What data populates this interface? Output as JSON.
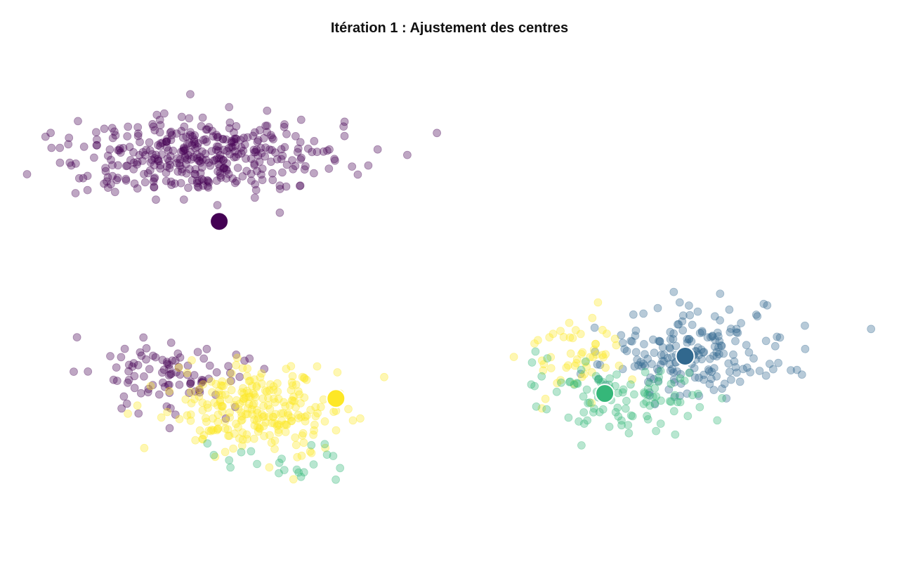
{
  "chart_data": {
    "type": "scatter",
    "title": "Itération 1 : Ajustement des centres",
    "xlabel": "",
    "ylabel": "",
    "axes_visible": false,
    "grid": false,
    "legend": "none",
    "xlim": [
      -2.5,
      13.5
    ],
    "ylim": [
      -3.5,
      9.0
    ],
    "palette": {
      "purple": "#440154",
      "blue": "#31688e",
      "green": "#35b779",
      "yellow": "#fde725"
    },
    "cluster_colors": [
      "purple",
      "blue",
      "green",
      "yellow"
    ],
    "centroids": [
      {
        "cluster": 0,
        "x": 1.2,
        "y": 4.8
      },
      {
        "cluster": 1,
        "x": 9.9,
        "y": 1.3
      },
      {
        "cluster": 2,
        "x": 8.4,
        "y": 0.33
      },
      {
        "cluster": 3,
        "x": 3.38,
        "y": 0.2
      }
    ],
    "point_groups": [
      {
        "cluster": 0,
        "count": 380,
        "center": [
          0.9,
          6.5
        ],
        "spread": [
          1.25,
          0.55
        ]
      },
      {
        "cluster": 0,
        "count": 95,
        "center": [
          0.3,
          0.8
        ],
        "spread": [
          0.75,
          0.55
        ]
      },
      {
        "cluster": 3,
        "count": 250,
        "center": [
          1.8,
          -0.1
        ],
        "spread": [
          0.85,
          0.55
        ]
      },
      {
        "cluster": 2,
        "count": 22,
        "center": [
          2.6,
          -1.4
        ],
        "spread": [
          0.7,
          0.3
        ]
      },
      {
        "cluster": 1,
        "count": 190,
        "center": [
          10.0,
          1.35
        ],
        "spread": [
          0.9,
          0.55
        ]
      },
      {
        "cluster": 3,
        "count": 55,
        "center": [
          7.8,
          1.3
        ],
        "spread": [
          0.5,
          0.55
        ]
      },
      {
        "cluster": 2,
        "count": 100,
        "center": [
          8.8,
          0.3
        ],
        "spread": [
          0.8,
          0.5
        ]
      }
    ]
  }
}
